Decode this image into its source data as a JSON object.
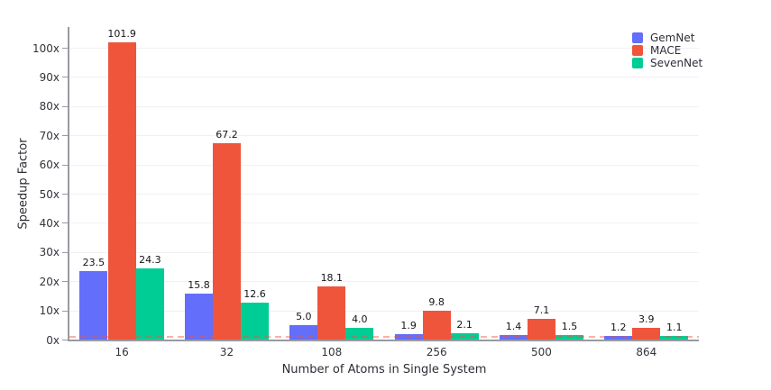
{
  "chart_data": {
    "type": "bar",
    "title": "",
    "xlabel": "Number of Atoms in Single System",
    "ylabel": "Speedup Factor",
    "categories": [
      "16",
      "32",
      "108",
      "256",
      "500",
      "864"
    ],
    "series": [
      {
        "name": "GemNet",
        "color": "#636EFA",
        "values": [
          23.5,
          15.8,
          5.0,
          1.9,
          1.4,
          1.2
        ]
      },
      {
        "name": "MACE",
        "color": "#EF553B",
        "values": [
          101.9,
          67.2,
          18.1,
          9.8,
          7.1,
          3.9
        ]
      },
      {
        "name": "SevenNet",
        "color": "#00CC96",
        "values": [
          24.3,
          12.6,
          4.0,
          2.1,
          1.5,
          1.1
        ]
      }
    ],
    "ytick_labels": [
      "0x",
      "10x",
      "20x",
      "30x",
      "40x",
      "50x",
      "60x",
      "70x",
      "80x",
      "90x",
      "100x"
    ],
    "ylim": [
      0,
      107
    ],
    "grid": true,
    "legend_position": "top-right",
    "bar_label_decimals": 1,
    "reference_line": {
      "y": 1,
      "style": "dashed",
      "color": "rgba(239,85,59,0.45)"
    }
  }
}
